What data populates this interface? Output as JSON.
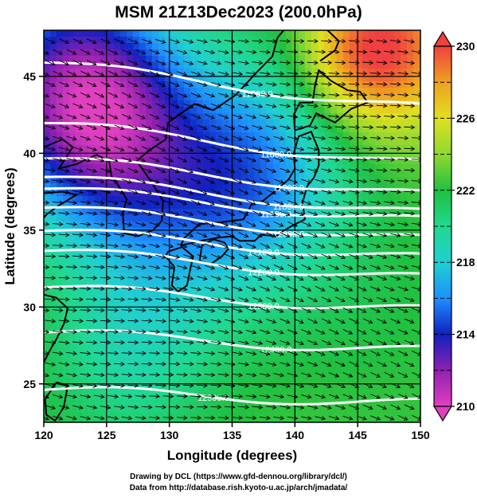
{
  "title": "MSM 21Z13Dec2023 (200.0hPa)",
  "credits": {
    "line1": "Drawing by DCL (https://www.gfd-dennou.org/library/dcl/)",
    "line2": "Data from http://database.rish.kyoto-u.ac.jp/arch/jmadata/"
  },
  "chart_data": {
    "type": "heatmap",
    "title": "MSM 21Z13Dec2023 (200.0hPa)",
    "xlabel": "Longitude (degrees)",
    "ylabel": "Latitude  (degrees)",
    "xlim": [
      120,
      150
    ],
    "ylim": [
      22.5,
      48
    ],
    "x_ticks": [
      120,
      125,
      130,
      135,
      140,
      145,
      150
    ],
    "y_ticks": [
      25,
      30,
      35,
      40,
      45
    ],
    "grid": true,
    "colorbar": {
      "min": 210,
      "max": 230,
      "ticks": [
        210,
        214,
        218,
        222,
        226,
        230
      ],
      "stops": [
        {
          "value": 210,
          "color": "#e040c0"
        },
        {
          "value": 212,
          "color": "#9020b0"
        },
        {
          "value": 214,
          "color": "#1020c0"
        },
        {
          "value": 216,
          "color": "#1e90ff"
        },
        {
          "value": 218,
          "color": "#20d0d0"
        },
        {
          "value": 220,
          "color": "#20d890"
        },
        {
          "value": 222,
          "color": "#20c040"
        },
        {
          "value": 224,
          "color": "#90d830"
        },
        {
          "value": 226,
          "color": "#e0e020"
        },
        {
          "value": 228,
          "color": "#f0a020"
        },
        {
          "value": 230,
          "color": "#f04040"
        }
      ]
    },
    "temperature_field": {
      "background": 222.5,
      "features": [
        {
          "lon": 122,
          "lat": 44.5,
          "value": 214.5,
          "radius": 5.5
        },
        {
          "lon": 125.5,
          "lat": 41.5,
          "value": 217,
          "radius": 5
        },
        {
          "lon": 137.5,
          "lat": 39,
          "value": 217.5,
          "radius": 5
        },
        {
          "lon": 132,
          "lat": 36.5,
          "value": 219,
          "radius": 5.5
        },
        {
          "lon": 148,
          "lat": 47,
          "value": 229,
          "radius": 4
        },
        {
          "lon": 144,
          "lat": 46,
          "value": 225.5,
          "radius": 3
        },
        {
          "lon": 127,
          "lat": 27.5,
          "value": 219.5,
          "radius": 4.5
        },
        {
          "lon": 146,
          "lat": 30,
          "value": 222,
          "radius": 5
        }
      ]
    },
    "contours": [
      {
        "label": "11500.0",
        "label_lon": 137,
        "lat": 44.2,
        "slope": -0.1
      },
      {
        "label": "11600.0",
        "label_lon": 138.5,
        "lat": 40.3,
        "slope": -0.09
      },
      {
        "label": "11700.0",
        "label_lon": 139.5,
        "lat": 38.1,
        "slope": -0.08
      },
      {
        "label": "11800.0",
        "label_lon": 139.5,
        "lat": 36.9,
        "slope": -0.08
      },
      {
        "label": "11900.0",
        "label_lon": 138.5,
        "lat": 36.4,
        "slope": -0.07
      },
      {
        "label": "12000.0",
        "label_lon": 139.5,
        "lat": 35.1,
        "slope": -0.07
      },
      {
        "label": "12100.0",
        "label_lon": 137.5,
        "lat": 33.9,
        "slope": -0.06
      },
      {
        "label": "12200.0",
        "label_lon": 137.5,
        "lat": 32.6,
        "slope": -0.06
      },
      {
        "label": "12300.0",
        "label_lon": 137.5,
        "lat": 30.4,
        "slope": -0.05
      },
      {
        "label": "12400.0",
        "label_lon": 138.5,
        "lat": 27.6,
        "slope": -0.04
      },
      {
        "label": "12500.0",
        "label_lon": 133.5,
        "lat": 24.2,
        "slope": -0.03
      }
    ],
    "wind_arrows": {
      "direction": "west-to-east",
      "lon_step": 1.1,
      "lat_step": 0.7
    }
  }
}
